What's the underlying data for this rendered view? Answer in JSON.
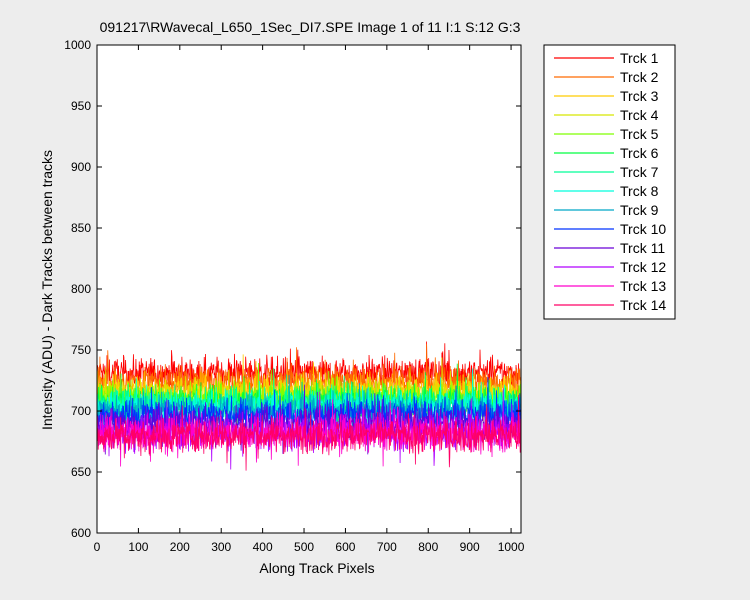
{
  "chart_data": {
    "type": "line",
    "title": "091217\\RWavecal_L650_1Sec_DI7.SPE  Image 1 of 11  I:1  S:12  G:3",
    "xlabel": "Along Track Pixels",
    "ylabel": "Intensity (ADU) - Dark Tracks between tracks",
    "xlim": [
      0,
      1024
    ],
    "ylim": [
      600,
      1000
    ],
    "xticks": [
      0,
      100,
      200,
      300,
      400,
      500,
      600,
      700,
      800,
      900,
      1000
    ],
    "yticks": [
      600,
      650,
      700,
      750,
      800,
      850,
      900,
      950,
      1000
    ],
    "grid": false,
    "legend_position": "outside-top-right",
    "x_range": [
      1,
      1024
    ],
    "series": [
      {
        "name": "Trck 1",
        "color": "#ff0000",
        "mean": 731,
        "noise": 6.5
      },
      {
        "name": "Trck 2",
        "color": "#ff6a00",
        "mean": 724,
        "noise": 6.5
      },
      {
        "name": "Trck 3",
        "color": "#ffcc00",
        "mean": 717,
        "noise": 6.5
      },
      {
        "name": "Trck 4",
        "color": "#d8e600",
        "mean": 713,
        "noise": 6.5
      },
      {
        "name": "Trck 5",
        "color": "#7fff00",
        "mean": 710,
        "noise": 6.5
      },
      {
        "name": "Trck 6",
        "color": "#00ff40",
        "mean": 708,
        "noise": 6.5
      },
      {
        "name": "Trck 7",
        "color": "#00ff99",
        "mean": 706,
        "noise": 6.5
      },
      {
        "name": "Trck 8",
        "color": "#00ffdd",
        "mean": 704,
        "noise": 6.5
      },
      {
        "name": "Trck 9",
        "color": "#00a6c8",
        "mean": 700,
        "noise": 6.5
      },
      {
        "name": "Trck 10",
        "color": "#0033ff",
        "mean": 697,
        "noise": 6.5
      },
      {
        "name": "Trck 11",
        "color": "#6a00d8",
        "mean": 690,
        "noise": 7
      },
      {
        "name": "Trck 12",
        "color": "#b000ff",
        "mean": 683,
        "noise": 7.5
      },
      {
        "name": "Trck 13",
        "color": "#ff00cc",
        "mean": 682,
        "noise": 7.5
      },
      {
        "name": "Trck 14",
        "color": "#ff0066",
        "mean": 680,
        "noise": 7
      }
    ]
  }
}
